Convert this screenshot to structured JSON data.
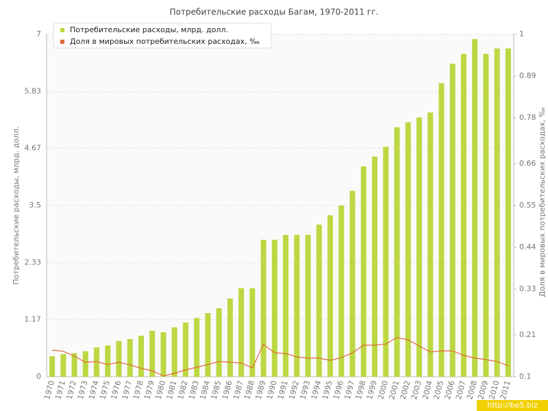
{
  "chart_data": {
    "type": "bar",
    "title": "Потребительские расходы Багам, 1970-2011 гг.",
    "y_label": "Потребительские расходы, млрд. долл.",
    "y2_label": "Доля в мировых потребительских расходах, ‰",
    "watermark": "http://be5.biz",
    "categories": [
      "1970",
      "1971",
      "1972",
      "1973",
      "1974",
      "1975",
      "1976",
      "1977",
      "1978",
      "1979",
      "1980",
      "1981",
      "1982",
      "1983",
      "1984",
      "1985",
      "1986",
      "1987",
      "1988",
      "1989",
      "1990",
      "1991",
      "1992",
      "1993",
      "1994",
      "1995",
      "1996",
      "1997",
      "1998",
      "1999",
      "2000",
      "2001",
      "2002",
      "2003",
      "2004",
      "2005",
      "2006",
      "2007",
      "2008",
      "2009",
      "2010",
      "2011"
    ],
    "series": [
      {
        "name": "Потребительские расходы, млрд. долл.",
        "color": "#bcd842",
        "type": "bar",
        "values": [
          0.42,
          0.46,
          0.48,
          0.52,
          0.6,
          0.64,
          0.73,
          0.77,
          0.84,
          0.94,
          0.91,
          1.01,
          1.11,
          1.2,
          1.3,
          1.4,
          1.6,
          1.81,
          1.81,
          2.8,
          2.8,
          2.9,
          2.9,
          2.9,
          3.11,
          3.3,
          3.5,
          3.8,
          4.3,
          4.5,
          4.7,
          5.1,
          5.2,
          5.3,
          5.4,
          6.0,
          6.4,
          6.6,
          6.9,
          6.6,
          6.71,
          6.71
        ]
      },
      {
        "name": "Доля в мировых потребительских расходах, ‰",
        "color": "#e0683a",
        "type": "line",
        "axis": "y2",
        "values": [
          0.17,
          0.167,
          0.154,
          0.138,
          0.14,
          0.132,
          0.138,
          0.131,
          0.122,
          0.116,
          0.102,
          0.109,
          0.118,
          0.125,
          0.132,
          0.14,
          0.138,
          0.136,
          0.123,
          0.185,
          0.163,
          0.161,
          0.152,
          0.149,
          0.149,
          0.143,
          0.15,
          0.163,
          0.183,
          0.183,
          0.186,
          0.203,
          0.197,
          0.181,
          0.165,
          0.168,
          0.168,
          0.156,
          0.149,
          0.145,
          0.14,
          0.129
        ]
      }
    ],
    "ylim": [
      0,
      7
    ],
    "yticks": [
      0,
      1.17,
      2.33,
      3.5,
      4.67,
      5.83,
      7
    ],
    "y2lim": [
      0.1,
      1
    ],
    "y2ticks": [
      0.1,
      0.21,
      0.33,
      0.44,
      0.55,
      0.66,
      0.78,
      0.89,
      1
    ],
    "grid": true
  }
}
